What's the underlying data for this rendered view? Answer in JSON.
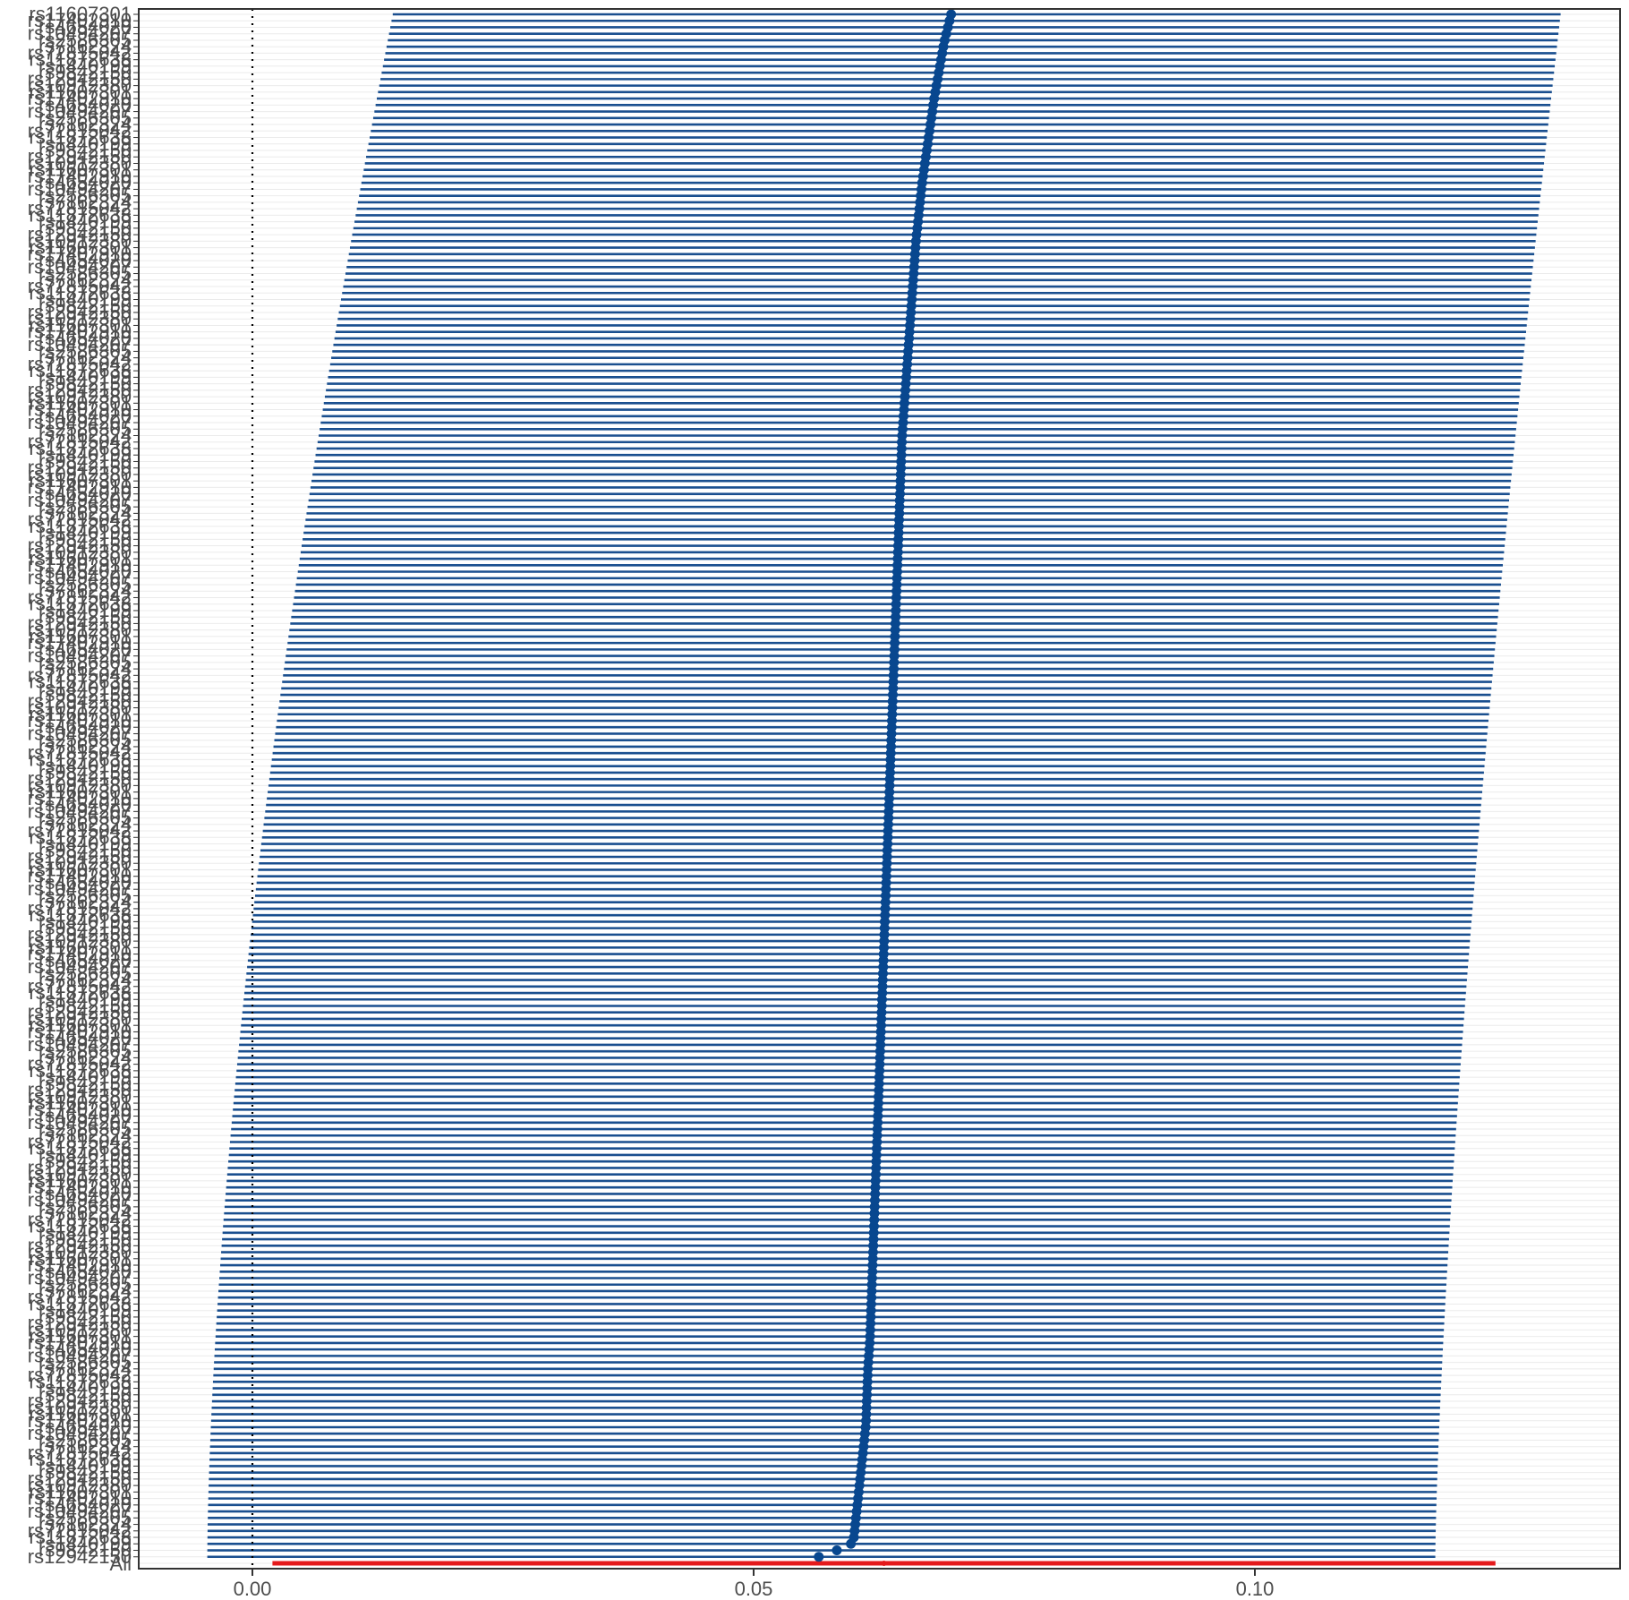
{
  "chart_data": {
    "type": "scatter",
    "subtype": "forest-plot-leave-one-out",
    "title": "",
    "xlabel": "",
    "ylabel": "",
    "xlim": [
      -0.012,
      0.137
    ],
    "x_ticks": [
      0.0,
      0.05,
      0.1
    ],
    "x_tick_labels": [
      "0.00",
      "0.05",
      "0.10"
    ],
    "reference_line_x": 0,
    "grid": "horizontal gridlines, light grey",
    "border": "black panel border",
    "colors": {
      "snp": "#1a4f8f",
      "snp_point": "#08478f",
      "all": "#e41a1c",
      "grid": "#ebebeb",
      "axis_text": "#4d4d4d",
      "panel_border": "#333333",
      "reference_line": "#000000"
    },
    "snp_labels": [
      "rs12942150",
      "rs9842150",
      "rs1440199",
      "rs11872638",
      "rs72815042",
      "rs7162324",
      "rs2586305",
      "rs10494207",
      "rs4654020",
      "rs17402910",
      "rs11607301",
      "rs10912380"
    ],
    "snp_count": 239,
    "snp_series_order": "bottom to top",
    "snp_estimate": [
      [
        0.0565,
        0.0583,
        0.0597,
        0.06,
        0.0603,
        0.0606,
        0.0609,
        0.0612
      ],
      [
        0.0613,
        0.0614,
        0.0616,
        0.0617,
        0.0618,
        0.0619,
        0.062,
        0.0621,
        0.0622,
        0.0623,
        0.0624,
        0.0625
      ],
      [
        0.0626,
        0.0627,
        0.0628,
        0.0629,
        0.063,
        0.0631,
        0.0632,
        0.0633,
        0.0634,
        0.0635,
        0.0636,
        0.0637
      ],
      [
        0.0638,
        0.0639,
        0.064,
        0.0641,
        0.0642,
        0.0643,
        0.0644,
        0.0645,
        0.0646,
        0.0647,
        0.0648,
        0.065
      ],
      [
        0.0652,
        0.0654,
        0.0656,
        0.0658,
        0.066,
        0.0662,
        0.0665,
        0.0668,
        0.0672,
        0.0676,
        0.068,
        0.0685
      ],
      [
        0.069,
        0.0697
      ]
    ],
    "snp_lower": [
      -0.0045,
      0.014
    ],
    "snp_upper": [
      0.118,
      0.1305
    ],
    "ci_interpolation": "linear in rank, trimmed at the bottom row and widened at the top row",
    "all": {
      "label": "All",
      "estimate": 0.063,
      "lower": 0.002,
      "upper": 0.124
    }
  }
}
